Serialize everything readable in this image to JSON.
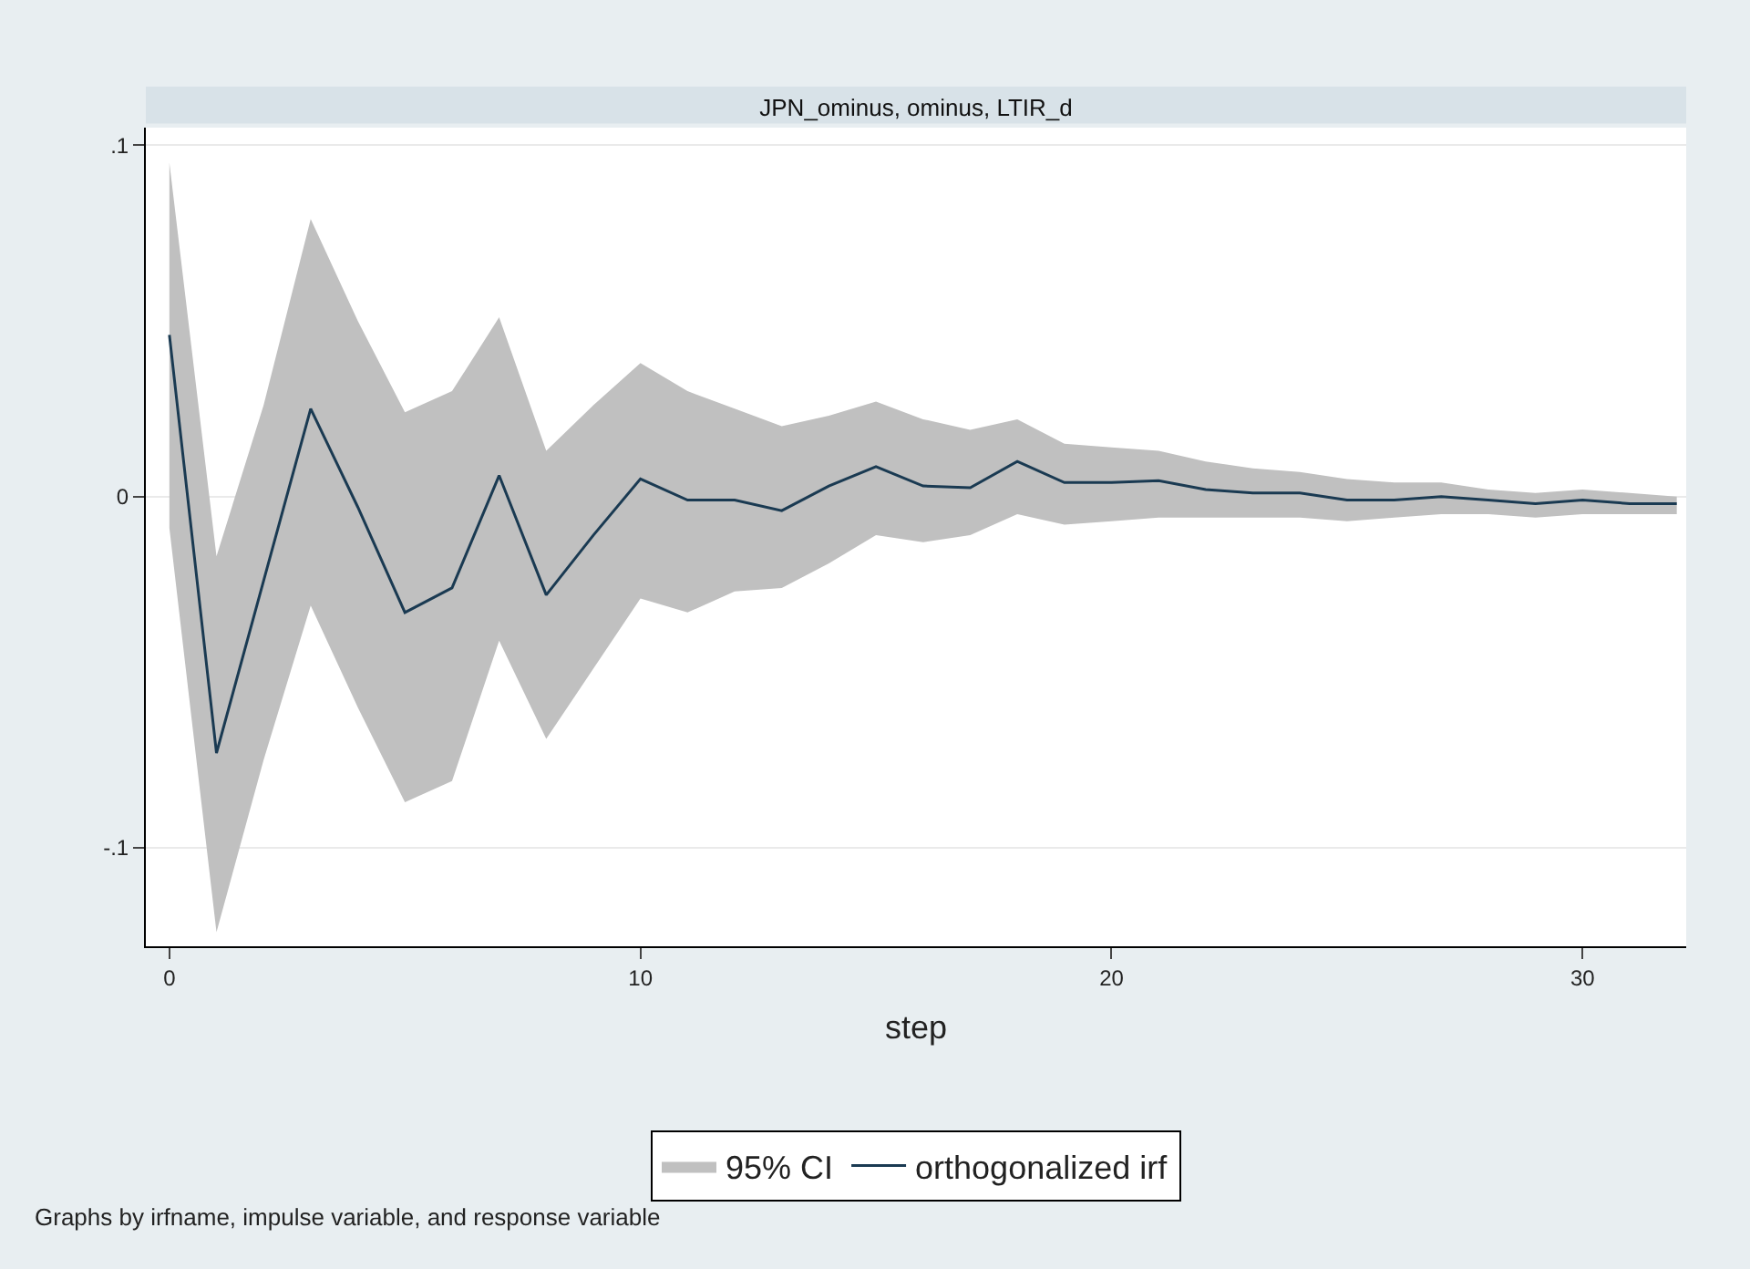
{
  "chart_data": {
    "type": "line",
    "title": "JPN_ominus, ominus, LTIR_d",
    "xlabel": "step",
    "x": [
      0,
      1,
      2,
      3,
      4,
      5,
      6,
      7,
      8,
      9,
      10,
      11,
      12,
      13,
      14,
      15,
      16,
      17,
      18,
      19,
      20,
      21,
      22,
      23,
      24,
      25,
      26,
      27,
      28,
      29,
      30,
      31,
      32
    ],
    "series": [
      {
        "name": "95% CI",
        "type": "area",
        "color": "#c0c0c0",
        "values": [
          null,
          null,
          null,
          null,
          null,
          null,
          null,
          null,
          null,
          null,
          null,
          null,
          null,
          null,
          null,
          null,
          null,
          null,
          null,
          null,
          null,
          null,
          null,
          null,
          null,
          null,
          null,
          null,
          null,
          null,
          null,
          null,
          null
        ]
      },
      {
        "name": "orthogonalized irf",
        "color": "#1a3a52",
        "values": [
          0.046,
          -0.073,
          -0.024,
          0.025,
          -0.003,
          -0.033,
          -0.026,
          0.006,
          -0.028,
          -0.011,
          0.005,
          -0.001,
          -0.001,
          -0.004,
          0.003,
          0.0085,
          0.003,
          0.0025,
          0.01,
          0.004,
          0.004,
          0.0045,
          0.002,
          0.001,
          0.001,
          -0.001,
          -0.001,
          0,
          -0.001,
          -0.002,
          -0.001,
          -0.002,
          -0.002
        ],
        "lower": [
          -0.009,
          -0.124,
          -0.075,
          -0.031,
          -0.06,
          -0.087,
          -0.081,
          -0.041,
          -0.069,
          -0.049,
          -0.029,
          -0.033,
          -0.027,
          -0.026,
          -0.019,
          -0.011,
          -0.013,
          -0.011,
          -0.005,
          -0.008,
          -0.007,
          -0.006,
          -0.006,
          -0.006,
          -0.006,
          -0.007,
          -0.006,
          -0.005,
          -0.005,
          -0.006,
          -0.005,
          -0.005,
          -0.005
        ],
        "upper": [
          0.095,
          -0.017,
          0.026,
          0.079,
          0.05,
          0.024,
          0.03,
          0.051,
          0.013,
          0.026,
          0.038,
          0.03,
          0.025,
          0.02,
          0.023,
          0.027,
          0.022,
          0.019,
          0.022,
          0.015,
          0.014,
          0.013,
          0.01,
          0.008,
          0.007,
          0.005,
          0.004,
          0.004,
          0.002,
          0.001,
          0.002,
          0.001,
          0
        ]
      }
    ],
    "xlim": [
      -0.5,
      32.2
    ],
    "xticks": [
      0,
      10,
      20,
      30
    ],
    "ylim": [
      -0.128,
      0.105
    ],
    "yticks": [
      {
        "value": 0.1,
        "label": ".1"
      },
      0,
      {
        "value": -0.1,
        "label": "-.1"
      }
    ],
    "grid": "y",
    "legend": "bottom",
    "marker": "none",
    "line_style": "solid",
    "annotations": [
      "Graphs by irfname, impulse variable, and response variable"
    ]
  }
}
